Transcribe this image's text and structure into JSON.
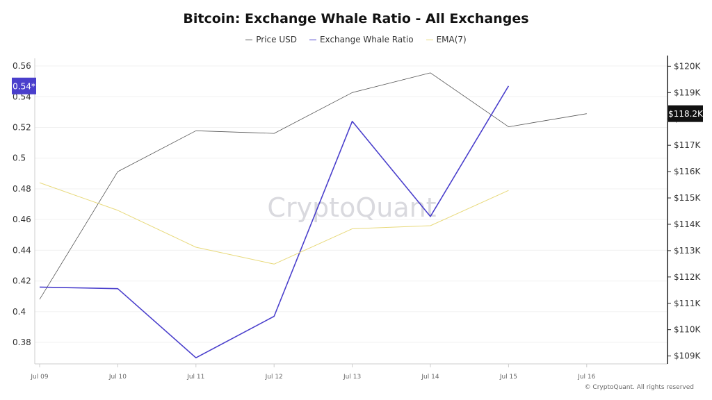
{
  "chart_data": {
    "type": "line",
    "title": "Bitcoin: Exchange Whale Ratio - All Exchanges",
    "categories": [
      "Jul 09",
      "Jul 10",
      "Jul 11",
      "Jul 12",
      "Jul 13",
      "Jul 14",
      "Jul 15",
      "Jul 16"
    ],
    "y_left": {
      "ticks": [
        "0.38",
        "0.4",
        "0.42",
        "0.44",
        "0.46",
        "0.48",
        "0.5",
        "0.52",
        "0.54",
        "0.56"
      ],
      "range": [
        0.366,
        0.565
      ]
    },
    "y_right": {
      "ticks": [
        "$109K",
        "$110K",
        "$111K",
        "$112K",
        "$113K",
        "$114K",
        "$115K",
        "$116K",
        "$117K",
        "$118K",
        "$119K",
        "$120K"
      ],
      "range": [
        108.7,
        120.3
      ]
    },
    "series": [
      {
        "name": "Price USD",
        "axis": "right",
        "color": "#555555",
        "values": [
          111.15,
          116.0,
          117.55,
          117.45,
          119.0,
          119.75,
          117.7,
          118.2
        ]
      },
      {
        "name": "Exchange Whale Ratio",
        "axis": "left",
        "color": "#4a3fcc",
        "values": [
          0.416,
          0.415,
          0.37,
          0.397,
          0.524,
          0.462,
          0.547,
          null
        ]
      },
      {
        "name": "EMA(7)",
        "axis": "left",
        "color": "#e8d97a",
        "values": [
          0.484,
          0.466,
          0.442,
          0.431,
          0.454,
          0.456,
          0.479,
          null
        ]
      }
    ],
    "current_left_label": "0.54*",
    "current_right_label": "$118.2K",
    "left_label_color": "#4a3fcc",
    "right_label_color": "#111111",
    "watermark": "CryptoQuant",
    "grid": true
  },
  "legend": [
    "Price USD",
    "Exchange Whale Ratio",
    "EMA(7)"
  ],
  "copyright": "© CryptoQuant. All rights reserved"
}
